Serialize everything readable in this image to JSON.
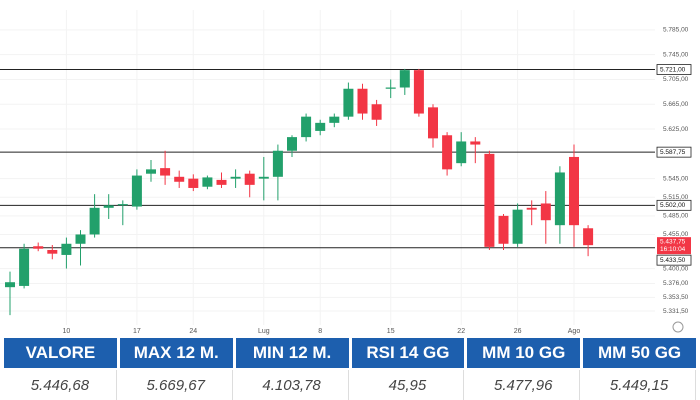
{
  "chart_data": {
    "type": "candlestick",
    "categories": [
      null,
      null,
      null,
      null,
      "10",
      null,
      null,
      null,
      null,
      "17",
      null,
      null,
      null,
      "24",
      null,
      null,
      null,
      null,
      "Lug",
      null,
      null,
      null,
      "8",
      null,
      null,
      null,
      null,
      "15",
      null,
      null,
      null,
      null,
      "22",
      null,
      null,
      null,
      "26",
      null,
      null,
      null,
      "Ago",
      null
    ],
    "open": [
      5370,
      5372,
      5436,
      5430,
      5422,
      5440,
      5455,
      5498,
      5502,
      5500,
      5553,
      5562,
      5548,
      5545,
      5532,
      5543,
      5545,
      5553,
      5545,
      5548,
      5590,
      5612,
      5622,
      5635,
      5645,
      5690,
      5665,
      5690,
      5692,
      5720,
      5660,
      5615,
      5570,
      5605,
      5585,
      5485,
      5440,
      5498,
      5505,
      5470,
      5580,
      5465
    ],
    "high": [
      5395,
      5440,
      5442,
      5438,
      5450,
      5462,
      5520,
      5520,
      5510,
      5560,
      5575,
      5590,
      5558,
      5552,
      5550,
      5555,
      5560,
      5558,
      5580,
      5600,
      5615,
      5650,
      5640,
      5650,
      5700,
      5698,
      5672,
      5705,
      5722,
      5722,
      5665,
      5620,
      5620,
      5612,
      5590,
      5488,
      5505,
      5510,
      5525,
      5565,
      5600,
      5470
    ],
    "low": [
      5325,
      5368,
      5428,
      5415,
      5400,
      5405,
      5450,
      5480,
      5470,
      5495,
      5540,
      5535,
      5530,
      5525,
      5528,
      5530,
      5530,
      5515,
      5510,
      5510,
      5580,
      5605,
      5615,
      5628,
      5640,
      5640,
      5630,
      5675,
      5680,
      5645,
      5595,
      5550,
      5565,
      5570,
      5430,
      5430,
      5435,
      5470,
      5440,
      5440,
      5435,
      5420
    ],
    "close": [
      5378,
      5432,
      5432,
      5424,
      5440,
      5455,
      5498,
      5502,
      5504,
      5550,
      5560,
      5550,
      5540,
      5530,
      5547,
      5535,
      5548,
      5535,
      5548,
      5590,
      5612,
      5645,
      5635,
      5645,
      5690,
      5650,
      5640,
      5692,
      5720,
      5650,
      5610,
      5560,
      5605,
      5600,
      5435,
      5440,
      5495,
      5495,
      5478,
      5555,
      5470,
      5437.75
    ],
    "up_color": "#22a06b",
    "down_color": "#f23645",
    "ylim": [
      5309,
      5817
    ],
    "yticks": [
      {
        "value": 5785,
        "label": "5.785,00"
      },
      {
        "value": 5745,
        "label": "5.745,00"
      },
      {
        "value": 5705,
        "label": "5.705,00"
      },
      {
        "value": 5665,
        "label": "5.665,00"
      },
      {
        "value": 5625,
        "label": "5.625,00"
      },
      {
        "value": 5545,
        "label": "5.545,00"
      },
      {
        "value": 5515,
        "label": "5.515,00"
      },
      {
        "value": 5485,
        "label": "5.485,00"
      },
      {
        "value": 5455,
        "label": "5.455,00"
      },
      {
        "value": 5400,
        "label": "5.400,00"
      },
      {
        "value": 5376,
        "label": "5.376,00"
      },
      {
        "value": 5353.5,
        "label": "5.353,50"
      },
      {
        "value": 5331.5,
        "label": "5.331,50"
      }
    ],
    "levels": [
      {
        "value": 5721,
        "label": "5.721,00"
      },
      {
        "value": 5587.75,
        "label": "5.587,75"
      },
      {
        "value": 5502,
        "label": "5.502,00"
      },
      {
        "value": 5433.5,
        "label": "5.433,50"
      }
    ],
    "last_price": {
      "value": 5437.75,
      "label": "5.437,75",
      "time": "16:10:04"
    },
    "grid": true
  },
  "table": {
    "headers": [
      "VALORE",
      "MAX 12 M.",
      "MIN 12 M.",
      "RSI 14 GG",
      "MM 10 GG",
      "MM 50 GG"
    ],
    "values": [
      "5.446,68",
      "5.669,67",
      "4.103,78",
      "45,95",
      "5.477,96",
      "5.449,15"
    ]
  }
}
